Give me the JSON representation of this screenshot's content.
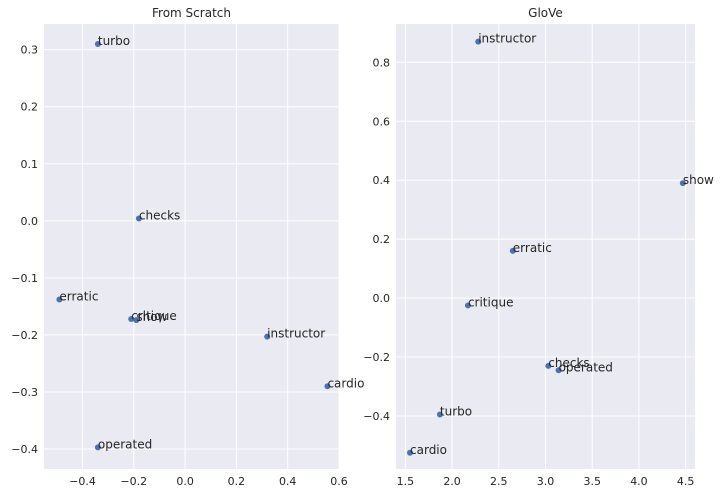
{
  "chart_data": [
    {
      "type": "scatter",
      "title": "From Scratch",
      "xlim": [
        -0.55,
        0.6
      ],
      "ylim": [
        -0.435,
        0.345
      ],
      "xticks": [
        -0.4,
        -0.2,
        0.0,
        0.2,
        0.4,
        0.6
      ],
      "xtick_labels": [
        "−0.4",
        "−0.2",
        "0.0",
        "0.2",
        "0.4",
        "0.6"
      ],
      "yticks": [
        -0.4,
        -0.3,
        -0.2,
        -0.1,
        0.0,
        0.1,
        0.2,
        0.3
      ],
      "ytick_labels": [
        "−0.4",
        "−0.3",
        "−0.2",
        "−0.1",
        "0.0",
        "0.1",
        "0.2",
        "0.3"
      ],
      "grid": true,
      "color": "#4c72b0",
      "points": [
        {
          "label": "turbo",
          "x": -0.34,
          "y": 0.31
        },
        {
          "label": "checks",
          "x": -0.18,
          "y": 0.004
        },
        {
          "label": "erratic",
          "x": -0.49,
          "y": -0.138
        },
        {
          "label": "critique",
          "x": -0.21,
          "y": -0.172
        },
        {
          "label": "show",
          "x": -0.19,
          "y": -0.174
        },
        {
          "label": "instructor",
          "x": 0.32,
          "y": -0.203
        },
        {
          "label": "cardio",
          "x": 0.555,
          "y": -0.29
        },
        {
          "label": "operated",
          "x": -0.34,
          "y": -0.397
        }
      ]
    },
    {
      "type": "scatter",
      "title": "GloVe",
      "xlim": [
        1.4,
        4.6
      ],
      "ylim": [
        -0.58,
        0.93
      ],
      "xticks": [
        1.5,
        2.0,
        2.5,
        3.0,
        3.5,
        4.0,
        4.5
      ],
      "xtick_labels": [
        "1.5",
        "2.0",
        "2.5",
        "3.0",
        "3.5",
        "4.0",
        "4.5"
      ],
      "yticks": [
        -0.4,
        -0.2,
        0.0,
        0.2,
        0.4,
        0.6,
        0.8
      ],
      "ytick_labels": [
        "−0.4",
        "−0.2",
        "0.0",
        "0.2",
        "0.4",
        "0.6",
        "0.8"
      ],
      "grid": true,
      "color": "#4c72b0",
      "points": [
        {
          "label": "instructor",
          "x": 2.28,
          "y": 0.87
        },
        {
          "label": "show",
          "x": 4.47,
          "y": 0.39
        },
        {
          "label": "erratic",
          "x": 2.65,
          "y": 0.16
        },
        {
          "label": "critique",
          "x": 2.17,
          "y": -0.025
        },
        {
          "label": "checks",
          "x": 3.03,
          "y": -0.23
        },
        {
          "label": "operated",
          "x": 3.14,
          "y": -0.245
        },
        {
          "label": "turbo",
          "x": 1.87,
          "y": -0.395
        },
        {
          "label": "cardio",
          "x": 1.55,
          "y": -0.525
        }
      ]
    }
  ]
}
